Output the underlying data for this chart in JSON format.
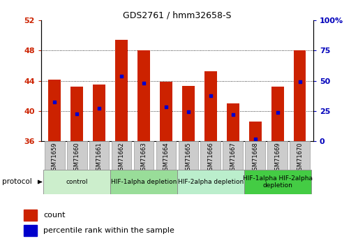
{
  "title": "GDS2761 / hmm32658-S",
  "samples": [
    "GSM71659",
    "GSM71660",
    "GSM71661",
    "GSM71662",
    "GSM71663",
    "GSM71664",
    "GSM71665",
    "GSM71666",
    "GSM71667",
    "GSM71668",
    "GSM71669",
    "GSM71670"
  ],
  "bar_tops": [
    44.1,
    43.2,
    43.5,
    49.4,
    48.0,
    43.9,
    43.3,
    45.3,
    41.0,
    38.6,
    43.2,
    48.0
  ],
  "bar_bottom": 36,
  "blue_dots_y": [
    41.2,
    39.6,
    40.3,
    44.6,
    43.7,
    40.5,
    39.9,
    42.0,
    39.5,
    36.3,
    39.8,
    43.9
  ],
  "ylim": [
    36,
    52
  ],
  "yticks_left": [
    36,
    40,
    44,
    48,
    52
  ],
  "yticks_right_pct": [
    0,
    25,
    50,
    75,
    100
  ],
  "bar_color": "#CC2200",
  "dot_color": "#0000CC",
  "ylabel_left_color": "#CC2200",
  "ylabel_right_color": "#0000BB",
  "protocols": [
    {
      "label": "control",
      "start": 0,
      "end": 3,
      "color": "#CCEECC"
    },
    {
      "label": "HIF-1alpha depletion",
      "start": 3,
      "end": 6,
      "color": "#99DD99"
    },
    {
      "label": "HIF-2alpha depletion",
      "start": 6,
      "end": 9,
      "color": "#BBEECC"
    },
    {
      "label": "HIF-1alpha HIF-2alpha\ndepletion",
      "start": 9,
      "end": 12,
      "color": "#44CC44"
    }
  ],
  "protocol_label": "protocol",
  "legend_count_label": "count",
  "legend_pct_label": "percentile rank within the sample",
  "sample_label_bg": "#CCCCCC"
}
